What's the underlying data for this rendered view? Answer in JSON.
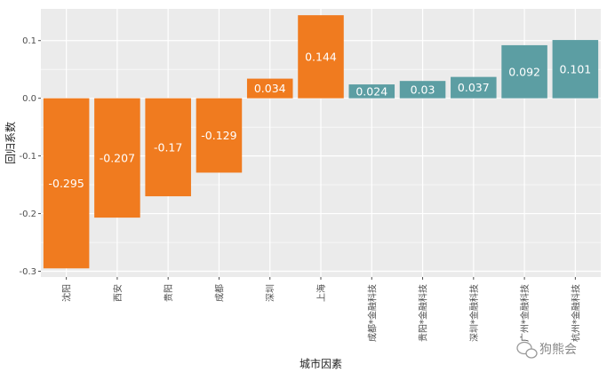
{
  "chart_data": {
    "type": "bar",
    "categories": [
      "沈阳",
      "西安",
      "贵阳",
      "成都",
      "深圳",
      "上海",
      "成都*金融科技",
      "贵阳*金融科技",
      "深圳*金融科技",
      "广州*金融科技",
      "杭州*金融科技"
    ],
    "values": [
      -0.295,
      -0.207,
      -0.17,
      -0.129,
      0.034,
      0.144,
      0.024,
      0.03,
      0.037,
      0.092,
      0.101
    ],
    "value_labels": [
      "-0.295",
      "-0.207",
      "-0.17",
      "-0.129",
      "0.034",
      "0.144",
      "0.024",
      "0.03",
      "0.037",
      "0.092",
      "0.101"
    ],
    "series_groups": [
      "city",
      "city",
      "city",
      "city",
      "city",
      "city",
      "fintech",
      "fintech",
      "fintech",
      "fintech",
      "fintech"
    ],
    "colors": {
      "city": "#f07b1f",
      "fintech": "#5c9ea3",
      "panel": "#ebebeb",
      "grid": "#ffffff"
    },
    "xlabel": "城市因素",
    "ylabel": "回归系数",
    "ylim": [
      -0.31,
      0.155
    ],
    "yticks": [
      -0.3,
      -0.2,
      -0.1,
      0.0,
      0.1
    ],
    "ytick_labels": [
      "-0.3",
      "-0.2",
      "-0.1",
      "0.0",
      "0.1"
    ],
    "grid": true,
    "legend": "none"
  },
  "watermark": {
    "text": "狗熊会",
    "icon": "wechat-icon"
  }
}
